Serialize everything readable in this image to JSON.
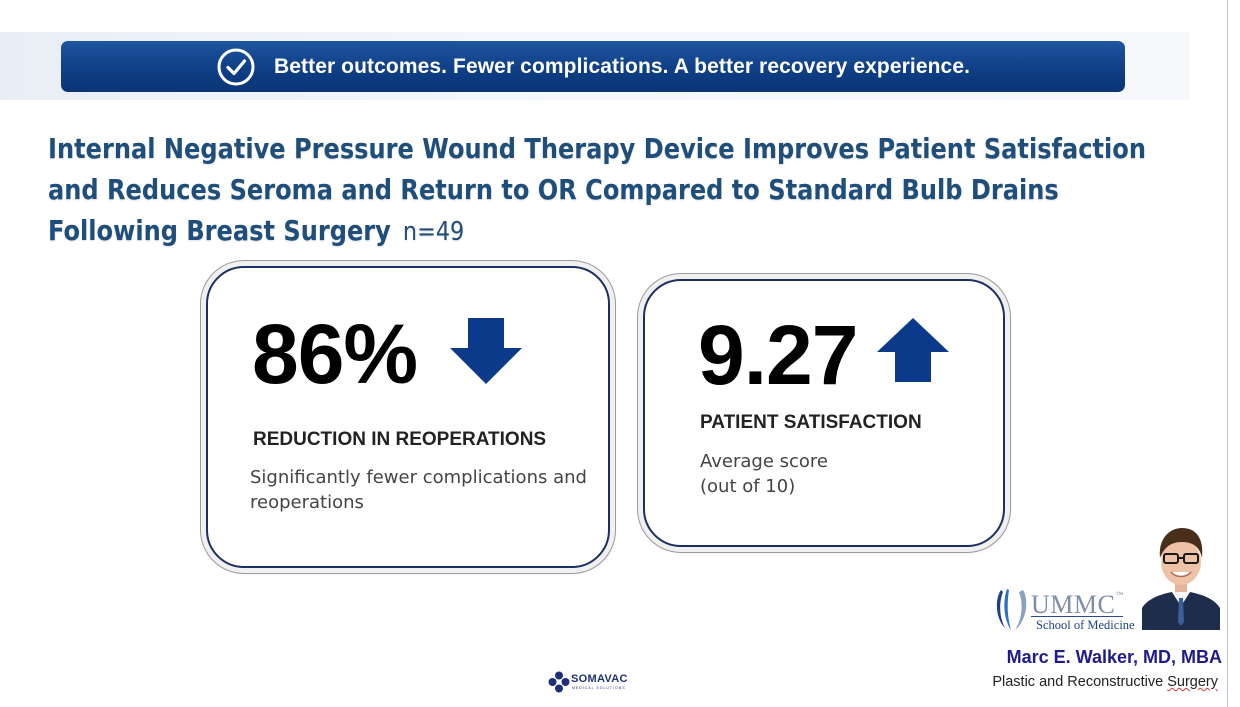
{
  "banner": {
    "icon": "check-circle-icon",
    "text": "Better outcomes. Fewer complications. A better recovery experience."
  },
  "title": {
    "text": "Internal Negative Pressure Wound Therapy Device Improves Patient Satisfaction and Reduces Seroma and Return to OR Compared to Standard Bulb Drains Following Breast Surgery",
    "sample_size": "n=49"
  },
  "cards": [
    {
      "value": "86%",
      "trend_icon": "arrow-down-icon",
      "label": "REDUCTION IN REOPERATIONS",
      "description": "Significantly fewer complications and reoperations"
    },
    {
      "value": "9.27",
      "trend_icon": "arrow-up-icon",
      "label": "PATIENT SATISFACTION",
      "description_line1": "Average score",
      "description_line2": "(out of 10)"
    }
  ],
  "institution": {
    "name": "UMMC",
    "trademark": "™",
    "subtitle": "School of Medicine"
  },
  "author": {
    "name": "Marc E. Walker, MD, MBA",
    "title_prefix": "Plastic and Reconstructive ",
    "title_suffix": "Surgery"
  },
  "sponsor": {
    "name": "SOMAVAC",
    "sub": "MEDICAL SOLUTIONS"
  },
  "colors": {
    "banner_blue": "#0f3f85",
    "title_blue": "#1e4e79",
    "arrow_blue": "#0c3a8a",
    "author_name": "#1f1b8a"
  }
}
